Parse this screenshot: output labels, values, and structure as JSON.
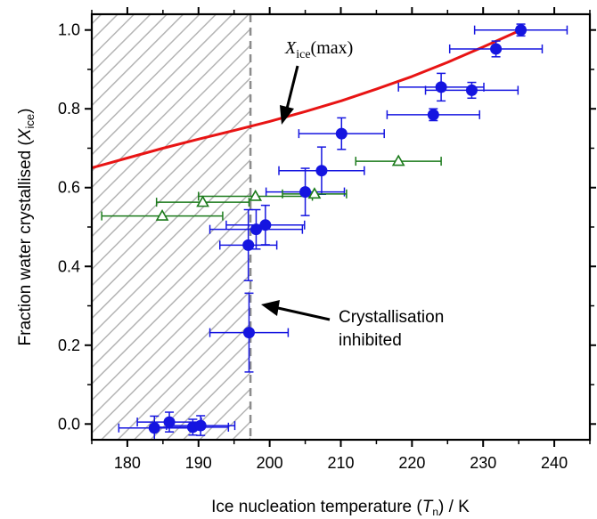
{
  "chart_data": {
    "type": "scatter",
    "xlabel": {
      "prefix": "Ice nucleation temperature (",
      "sym": "T",
      "sub": "n",
      "suffix": ") / K"
    },
    "ylabel": {
      "prefix": "Fraction water crystallised (",
      "sym": "X",
      "sub": "ice",
      "suffix": ")"
    },
    "xlim": [
      175,
      245
    ],
    "ylim": [
      -0.04,
      1.04
    ],
    "xticks": [
      "180",
      "190",
      "200",
      "210",
      "220",
      "230",
      "240"
    ],
    "yticks": [
      "0.0",
      "0.2",
      "0.4",
      "0.6",
      "0.8",
      "1.0"
    ],
    "grid": false,
    "inhibited_region": {
      "x_from": 175,
      "x_to": 197.3
    },
    "annotations": {
      "max_curve": {
        "sym": "X",
        "sub": "ice",
        "suffix": "(max)"
      },
      "inhibited_line1": "Crystallisation",
      "inhibited_line2": "inhibited"
    },
    "colors": {
      "filled": "#1515e0",
      "open": "#1a7a1a",
      "curve": "#e81414",
      "hatch": "#b4b4b4"
    },
    "series": [
      {
        "marker": "filled-circle",
        "points": [
          {
            "x": 183.8,
            "y": -0.01,
            "xerr": 5,
            "yerr": 0.03
          },
          {
            "x": 185.9,
            "y": 0.005,
            "xerr": 4.5,
            "yerr": 0.025
          },
          {
            "x": 189.2,
            "y": -0.008,
            "xerr": 5,
            "yerr": 0.02
          },
          {
            "x": 190.3,
            "y": -0.004,
            "xerr": 4.8,
            "yerr": 0.025
          },
          {
            "x": 197.1,
            "y": 0.232,
            "xerr": 5.5,
            "yerr": 0.1
          },
          {
            "x": 197.0,
            "y": 0.454,
            "xerr": 4,
            "yerr": 0.09
          },
          {
            "x": 198.1,
            "y": 0.494,
            "xerr": 6.5,
            "yerr": 0.05
          },
          {
            "x": 199.4,
            "y": 0.505,
            "xerr": 5.5,
            "yerr": 0.05
          },
          {
            "x": 205.0,
            "y": 0.589,
            "xerr": 5.5,
            "yerr": 0.06
          },
          {
            "x": 207.3,
            "y": 0.643,
            "xerr": 6,
            "yerr": 0.06
          },
          {
            "x": 210.1,
            "y": 0.737,
            "xerr": 6,
            "yerr": 0.04
          },
          {
            "x": 223.0,
            "y": 0.785,
            "xerr": 6.5,
            "yerr": 0.015
          },
          {
            "x": 224.1,
            "y": 0.855,
            "xerr": 6,
            "yerr": 0.035
          },
          {
            "x": 228.4,
            "y": 0.847,
            "xerr": 6.5,
            "yerr": 0.02
          },
          {
            "x": 231.8,
            "y": 0.952,
            "xerr": 6.5,
            "yerr": 0.02
          },
          {
            "x": 235.3,
            "y": 1.0,
            "xerr": 6.5,
            "yerr": 0.015
          }
        ]
      },
      {
        "marker": "open-triangle",
        "points": [
          {
            "x": 184.9,
            "y": 0.528,
            "xerr": 8.5
          },
          {
            "x": 190.6,
            "y": 0.563,
            "xerr": 6.5
          },
          {
            "x": 198.0,
            "y": 0.578,
            "xerr": 8
          },
          {
            "x": 206.3,
            "y": 0.584,
            "xerr": 4.5
          },
          {
            "x": 218.1,
            "y": 0.667,
            "xerr": 6
          }
        ]
      }
    ],
    "curve": {
      "name": "Xice(max)",
      "x": [
        175,
        180,
        185,
        190,
        195,
        200,
        205,
        210,
        215,
        220,
        225,
        230,
        235.3
      ],
      "y": [
        0.65,
        0.675,
        0.7,
        0.723,
        0.745,
        0.768,
        0.793,
        0.82,
        0.85,
        0.882,
        0.918,
        0.957,
        1.0
      ]
    }
  }
}
